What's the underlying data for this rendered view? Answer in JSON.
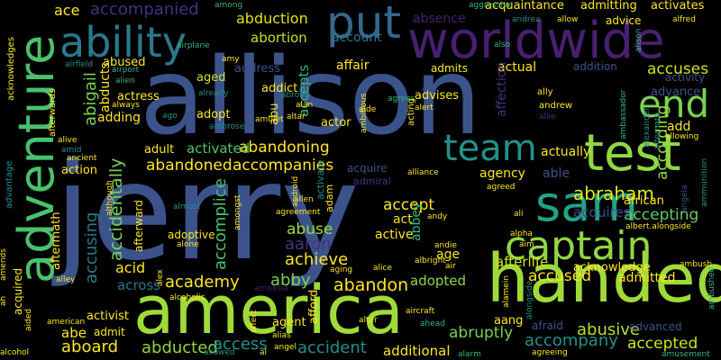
{
  "palette": {
    "background": "#000000",
    "deep_purple": "#481f70",
    "indigo": "#3b528b",
    "blue": "#31688e",
    "teal": "#21918c",
    "green": "#35b779",
    "lime": "#90d743",
    "yellow": "#fde725"
  },
  "words": {
    "jerry": "jerry",
    "allison": "allison",
    "america": "america",
    "handed": "handed",
    "worldwide": "worldwide",
    "adventure": "adventure",
    "captain": "captain",
    "ability": "ability",
    "test": "test",
    "sam": "sam",
    "team": "team",
    "put": "put",
    "end": "end",
    "abraham": "abraham",
    "abduction": "abduction",
    "abortion": "abortion",
    "absence": "absence",
    "accompanied": "accompanied",
    "accuses": "accuses",
    "accompanies": "accompanies",
    "abandoning": "abandoning",
    "abandoned": "abandoned",
    "activated": "activated",
    "accidentally": "accidentally",
    "accomplice": "accomplice",
    "accusing": "accusing",
    "academy": "academy",
    "abandon": "abandon",
    "aaron": "aaron",
    "achieve": "achieve",
    "abuse": "abuse",
    "abby": "abby",
    "accept": "accept",
    "accepting": "accepting",
    "according": "according",
    "acquires": "acquires",
    "accused": "accused",
    "abusive": "abusive",
    "accompany": "accompany",
    "accepted": "accepted",
    "accident": "accident",
    "abducted": "abducted",
    "access": "access",
    "aboard": "aboard",
    "abruptly": "abruptly",
    "additional": "additional",
    "afterlife": "afterlife",
    "adopted": "adopted",
    "ace": "ace",
    "adding": "adding",
    "abigail": "abigail",
    "abducts": "abducts",
    "abused": "abused",
    "address": "address",
    "aged": "aged",
    "adopt": "adopt",
    "adult": "adult",
    "account": "account",
    "accepts": "accepts",
    "actor": "actor",
    "affair": "affair",
    "admits": "admits",
    "actual": "actual",
    "addition": "addition",
    "add": "add",
    "actually": "actually",
    "able": "able",
    "agency": "agency",
    "african": "african",
    "acquire": "acquire",
    "act": "act",
    "active": "active",
    "age": "age",
    "abbey": "abbey",
    "acid": "acid",
    "across": "across",
    "abe": "abe",
    "activist": "activist",
    "admit": "admit",
    "agent": "agent",
    "afford": "afford",
    "aang": "aang",
    "afraid": "afraid",
    "advanced": "advanced",
    "admitted": "admitted",
    "acknowledge": "acknowledge",
    "action": "action",
    "aftermath": "aftermath",
    "afterward": "afterward",
    "adoptive": "adoptive",
    "acquaintance": "acquaintance",
    "admitting": "admitting",
    "activates": "activates",
    "advice": "advice",
    "advance": "advance",
    "activity": "activity",
    "advises": "advises",
    "actress": "actress",
    "addict": "addict",
    "abu": "abu",
    "among": "among",
    "aggressive": "aggressive",
    "andrea": "andrea",
    "allow": "allow",
    "alfred": "alfred",
    "also": "also",
    "airplane": "airplane",
    "airport": "airport",
    "alien": "alien",
    "airfield": "airfield",
    "amy": "amy",
    "abroad": "abroad",
    "alan": "alan",
    "already": "already",
    "always": "always",
    "ago": "ago",
    "ambrose": "ambrose",
    "amulet": "amulet",
    "altar": "altar",
    "ambitious": "ambitious",
    "aide": "aide",
    "agrees": "agrees",
    "ana": "ana",
    "alert": "alert",
    "acting": "acting",
    "affection": "affection",
    "alison": "alison",
    "ally": "ally",
    "andrew": "andrew",
    "allie": "allie",
    "ambassador": "ambassador",
    "alexander": "alexander",
    "alternate": "alternate",
    "allowing": "allowing",
    "albert.alongside": "albert.alongside",
    "angela": "angela",
    "ammunition": "ammunition",
    "ambush": "ambush",
    "ambushed": "ambushed",
    "amusement": "amusement",
    "alarm": "alarm",
    "agreeing": "agreeing",
    "aircraft": "aircraft",
    "ahead": "ahead",
    "alter": "alter",
    "alias": "alias",
    "allowed": "allowed",
    "al": "al",
    "angel": "angel",
    "affect": "affect",
    "amnesia": "amnesia",
    "alcoholic": "alcoholic",
    "alex": "alex",
    "alley": "alley",
    "ah": "ah",
    "acquired": "acquired",
    "amends": "amends",
    "alcohol": "alcohol",
    "aided": "aided",
    "american": "american",
    "alone": "alone",
    "almost": "almost",
    "alive": "alive",
    "amid": "amid",
    "ancient": "ancient",
    "advantage": "advantage",
    "afterwards": "afterwards",
    "acknowledges": "acknowledges",
    "android": "android",
    "allen": "allen",
    "agreement": "agreement",
    "adam": "adam",
    "admiral": "admiral",
    "activate": "activate",
    "alliance": "alliance",
    "agreed": "agreed",
    "ali": "ali",
    "alpha": "alpha",
    "aim": "aim",
    "andy": "andy",
    "andie": "andie",
    "albright": "albright",
    "air": "air",
    "alice": "alice",
    "aging": "aging",
    "although": "although",
    "amongst": "amongst",
    "alamein": "alamein",
    "alongside": "alongside"
  }
}
